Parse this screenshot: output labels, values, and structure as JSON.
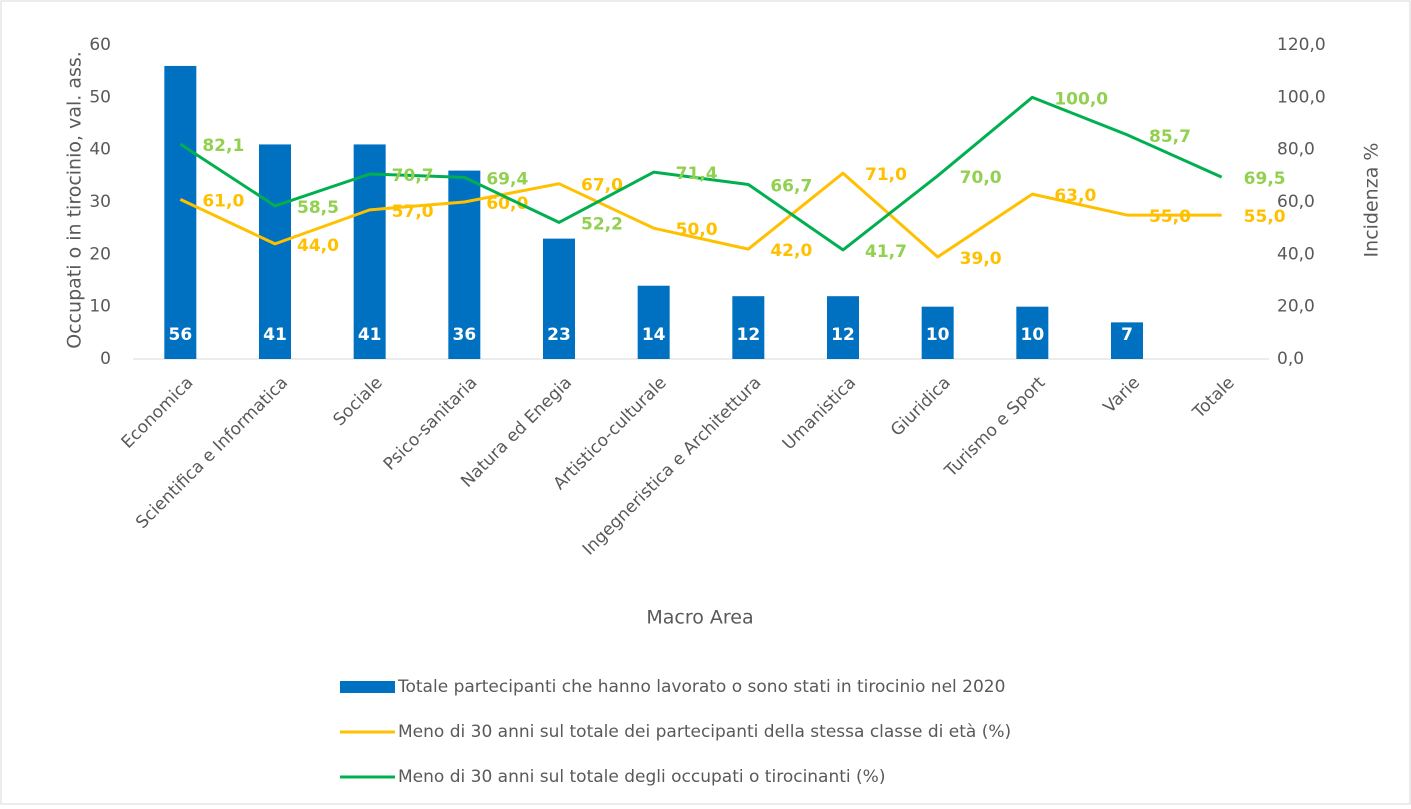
{
  "chart_data": {
    "type": "bar-line",
    "x_label": "Macro Area",
    "y_label": "Occupati o in tirocinio, val. ass.",
    "y2_label": "Incidenza %",
    "categories": [
      "Economica",
      "Scientifica e Informatica",
      "Sociale",
      "Psico-sanitaria",
      "Natura ed Enegia",
      "Artistico-culturale",
      "Ingegneristica e Architettura",
      "Umanistica",
      "Giuridica",
      "Turismo e Sport",
      "Varie",
      "Totale"
    ],
    "series": [
      {
        "name": "Totale partecipanti che hanno lavorato o sono stati in tirocinio nel 2020",
        "type": "bar",
        "color": "#0070c0",
        "values": [
          56,
          41,
          41,
          36,
          23,
          14,
          12,
          12,
          10,
          10,
          7,
          null
        ]
      },
      {
        "name": "Meno di 30 anni sul totale dei partecipanti della stessa classe di età (%)",
        "type": "line",
        "axis": "y2",
        "color": "#ffc000",
        "values": [
          61,
          44,
          57,
          60,
          67,
          50,
          42,
          71,
          39,
          63,
          55,
          55
        ],
        "value_labels": [
          "61,0",
          "44,0",
          "57,0",
          "60,0",
          "67,0",
          "50,0",
          "42,0",
          "71,0",
          "39,0",
          "63,0",
          "55,0",
          "55,0"
        ]
      },
      {
        "name": "Meno di 30 anni sul totale degli occupati o tirocinanti (%)",
        "type": "line",
        "axis": "y2",
        "color": "#00b050",
        "label_color": "#92d050",
        "values": [
          82.1,
          58.5,
          70.7,
          69.4,
          52.2,
          71.4,
          66.7,
          41.7,
          70.0,
          100.0,
          85.7,
          69.5
        ],
        "value_labels": [
          "82,1",
          "58,5",
          "70,7",
          "69,4",
          "52,2",
          "71,4",
          "66,7",
          "41,7",
          "70,0",
          "100,0",
          "85,7",
          "69,5"
        ]
      }
    ],
    "ylim": [
      0,
      60
    ],
    "yticks": [
      0,
      10,
      20,
      30,
      40,
      50,
      60
    ],
    "y2lim": [
      0,
      120
    ],
    "y2ticks": [
      {
        "value": 0,
        "label": "0,0"
      },
      {
        "value": 20,
        "label": "20,0"
      },
      {
        "value": 40,
        "label": "40,0"
      },
      {
        "value": 60,
        "label": "60,0"
      },
      {
        "value": 80,
        "label": "80,0"
      },
      {
        "value": 100,
        "label": "100,0"
      },
      {
        "value": 120,
        "label": "120,0"
      }
    ],
    "grid": false
  }
}
